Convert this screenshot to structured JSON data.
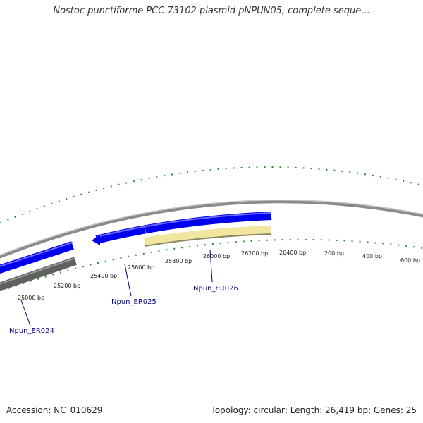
{
  "title": "Nostoc punctiforme PCC 73102 plasmid pNPUN05, complete seque...",
  "footer": {
    "accession": "Accession: NC_010629",
    "summary": "Topology: circular; Length: 26,419 bp; Genes: 25"
  },
  "ticks": [
    "25000 bp",
    "25200 bp",
    "25400 bp",
    "25600 bp",
    "25800 bp",
    "26000 bp",
    "26200 bp",
    "26400 bp",
    "200 bp",
    "400 bp",
    "600 bp"
  ],
  "genes": [
    {
      "name": "Npun_ER024",
      "strand": "reverse",
      "color": "#555555"
    },
    {
      "name": "Npun_ER025",
      "strand": "forward",
      "color": "#0000ee"
    },
    {
      "name": "Npun_ER026",
      "strand": "forward",
      "color": "#0000ee"
    }
  ],
  "colors": {
    "backbone": "#888888",
    "gc_skew": "#2a8a2a",
    "forward_gene": "#0000ee",
    "reverse_gene": "#555555",
    "feature_yellow": "#f0e6a0"
  }
}
